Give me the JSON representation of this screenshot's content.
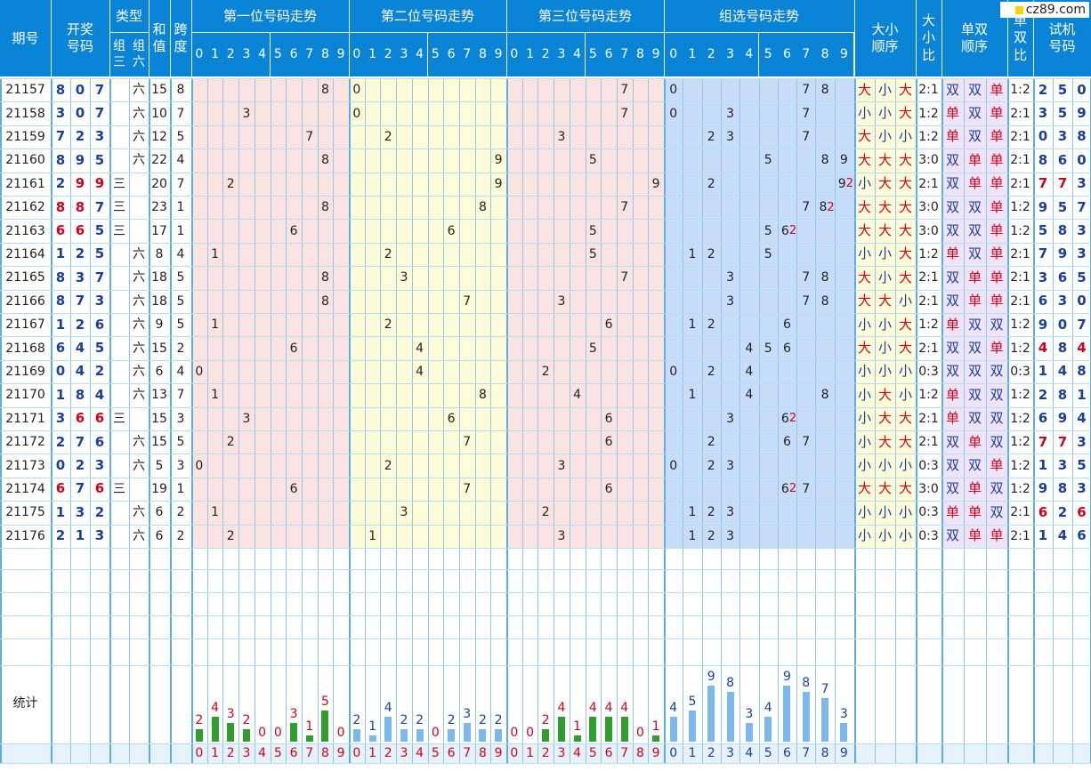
{
  "watermark": "cz89.com",
  "headers": {
    "period": "期号",
    "draw": "开奖\n号码",
    "type": "类型",
    "type_g3": "组\n三",
    "type_g6": "组\n六",
    "sum": "和\n值",
    "span": "跨\n度",
    "pos1": "第一位号码走势",
    "pos2": "第二位号码走势",
    "pos3": "第三位号码走势",
    "group": "组选号码走势",
    "big_small_order": "大小\n顺序",
    "big_small_ratio": "大\n小\n比",
    "odd_even_order": "单双\n顺序",
    "odd_even_ratio": "单\n双\n比",
    "trial": "试机\n号码",
    "digits": [
      "0",
      "1",
      "2",
      "3",
      "4",
      "5",
      "6",
      "7",
      "8",
      "9"
    ]
  },
  "rows": [
    {
      "p": "21157",
      "d": [
        "8",
        "0",
        "7"
      ],
      "red": [
        0,
        0,
        0
      ],
      "g3": "",
      "g6": "六",
      "sum": "15",
      "span": "8",
      "grp": [
        "0",
        "",
        "",
        "",
        "",
        "",
        "",
        "7",
        "8",
        ""
      ],
      "grpRed": [],
      "bs": [
        "大",
        "小",
        "大"
      ],
      "bsr": "2:1",
      "oe": [
        "双",
        "双",
        "单"
      ],
      "oer": "1:2",
      "t": [
        "2",
        "5",
        "0"
      ],
      "tRed": [
        0,
        0,
        0
      ]
    },
    {
      "p": "21158",
      "d": [
        "3",
        "0",
        "7"
      ],
      "red": [
        0,
        0,
        0
      ],
      "g3": "",
      "g6": "六",
      "sum": "10",
      "span": "7",
      "grp": [
        "0",
        "",
        "",
        "3",
        "",
        "",
        "",
        "7",
        "",
        ""
      ],
      "grpRed": [],
      "bs": [
        "小",
        "小",
        "大"
      ],
      "bsr": "1:2",
      "oe": [
        "单",
        "双",
        "单"
      ],
      "oer": "2:1",
      "t": [
        "3",
        "5",
        "9"
      ],
      "tRed": [
        0,
        0,
        0
      ]
    },
    {
      "p": "21159",
      "d": [
        "7",
        "2",
        "3"
      ],
      "red": [
        0,
        0,
        0
      ],
      "g3": "",
      "g6": "六",
      "sum": "12",
      "span": "5",
      "grp": [
        "",
        "",
        "2",
        "3",
        "",
        "",
        "",
        "7",
        "",
        ""
      ],
      "grpRed": [],
      "bs": [
        "大",
        "小",
        "小"
      ],
      "bsr": "1:2",
      "oe": [
        "单",
        "双",
        "单"
      ],
      "oer": "2:1",
      "t": [
        "0",
        "3",
        "8"
      ],
      "tRed": [
        0,
        0,
        0
      ]
    },
    {
      "p": "21160",
      "d": [
        "8",
        "9",
        "5"
      ],
      "red": [
        0,
        0,
        0
      ],
      "g3": "",
      "g6": "六",
      "sum": "22",
      "span": "4",
      "grp": [
        "",
        "",
        "",
        "",
        "",
        "5",
        "",
        "",
        "8",
        "9"
      ],
      "grpRed": [],
      "bs": [
        "大",
        "大",
        "大"
      ],
      "bsr": "3:0",
      "oe": [
        "双",
        "单",
        "单"
      ],
      "oer": "2:1",
      "t": [
        "8",
        "6",
        "0"
      ],
      "tRed": [
        0,
        0,
        0
      ]
    },
    {
      "p": "21161",
      "d": [
        "2",
        "9",
        "9"
      ],
      "red": [
        0,
        1,
        1
      ],
      "g3": "三",
      "g6": "",
      "sum": "20",
      "span": "7",
      "grp": [
        "",
        "",
        "2",
        "",
        "",
        "",
        "",
        "",
        "",
        "9"
      ],
      "grpRed": [
        9
      ],
      "bs": [
        "小",
        "大",
        "大"
      ],
      "bsr": "2:1",
      "oe": [
        "双",
        "单",
        "单"
      ],
      "oer": "2:1",
      "t": [
        "7",
        "7",
        "3"
      ],
      "tRed": [
        1,
        1,
        0
      ]
    },
    {
      "p": "21162",
      "d": [
        "8",
        "8",
        "7"
      ],
      "red": [
        1,
        1,
        0
      ],
      "g3": "三",
      "g6": "",
      "sum": "23",
      "span": "1",
      "grp": [
        "",
        "",
        "",
        "",
        "",
        "",
        "",
        "7",
        "8",
        ""
      ],
      "grpRed": [
        8
      ],
      "bs": [
        "大",
        "大",
        "大"
      ],
      "bsr": "3:0",
      "oe": [
        "双",
        "双",
        "单"
      ],
      "oer": "1:2",
      "t": [
        "9",
        "5",
        "7"
      ],
      "tRed": [
        0,
        0,
        0
      ]
    },
    {
      "p": "21163",
      "d": [
        "6",
        "6",
        "5"
      ],
      "red": [
        1,
        1,
        0
      ],
      "g3": "三",
      "g6": "",
      "sum": "17",
      "span": "1",
      "grp": [
        "",
        "",
        "",
        "",
        "",
        "5",
        "6",
        "",
        "",
        ""
      ],
      "grpRed": [
        6
      ],
      "bs": [
        "大",
        "大",
        "大"
      ],
      "bsr": "3:0",
      "oe": [
        "双",
        "双",
        "单"
      ],
      "oer": "1:2",
      "t": [
        "5",
        "8",
        "3"
      ],
      "tRed": [
        0,
        0,
        0
      ]
    },
    {
      "p": "21164",
      "d": [
        "1",
        "2",
        "5"
      ],
      "red": [
        0,
        0,
        0
      ],
      "g3": "",
      "g6": "六",
      "sum": "8",
      "span": "4",
      "grp": [
        "",
        "1",
        "2",
        "",
        "",
        "5",
        "",
        "",
        "",
        ""
      ],
      "grpRed": [],
      "bs": [
        "小",
        "小",
        "大"
      ],
      "bsr": "1:2",
      "oe": [
        "单",
        "双",
        "单"
      ],
      "oer": "2:1",
      "t": [
        "7",
        "9",
        "3"
      ],
      "tRed": [
        0,
        0,
        0
      ]
    },
    {
      "p": "21165",
      "d": [
        "8",
        "3",
        "7"
      ],
      "red": [
        0,
        0,
        0
      ],
      "g3": "",
      "g6": "六",
      "sum": "18",
      "span": "5",
      "grp": [
        "",
        "",
        "",
        "3",
        "",
        "",
        "",
        "7",
        "8",
        ""
      ],
      "grpRed": [],
      "bs": [
        "大",
        "小",
        "大"
      ],
      "bsr": "2:1",
      "oe": [
        "双",
        "单",
        "单"
      ],
      "oer": "2:1",
      "t": [
        "3",
        "6",
        "5"
      ],
      "tRed": [
        0,
        0,
        0
      ]
    },
    {
      "p": "21166",
      "d": [
        "8",
        "7",
        "3"
      ],
      "red": [
        0,
        0,
        0
      ],
      "g3": "",
      "g6": "六",
      "sum": "18",
      "span": "5",
      "grp": [
        "",
        "",
        "",
        "3",
        "",
        "",
        "",
        "7",
        "8",
        ""
      ],
      "grpRed": [],
      "bs": [
        "大",
        "大",
        "小"
      ],
      "bsr": "2:1",
      "oe": [
        "双",
        "单",
        "单"
      ],
      "oer": "2:1",
      "t": [
        "6",
        "3",
        "0"
      ],
      "tRed": [
        0,
        0,
        0
      ]
    },
    {
      "p": "21167",
      "d": [
        "1",
        "2",
        "6"
      ],
      "red": [
        0,
        0,
        0
      ],
      "g3": "",
      "g6": "六",
      "sum": "9",
      "span": "5",
      "grp": [
        "",
        "1",
        "2",
        "",
        "",
        "",
        "6",
        "",
        "",
        ""
      ],
      "grpRed": [],
      "bs": [
        "小",
        "小",
        "大"
      ],
      "bsr": "1:2",
      "oe": [
        "单",
        "双",
        "双"
      ],
      "oer": "1:2",
      "t": [
        "9",
        "0",
        "7"
      ],
      "tRed": [
        0,
        0,
        0
      ]
    },
    {
      "p": "21168",
      "d": [
        "6",
        "4",
        "5"
      ],
      "red": [
        0,
        0,
        0
      ],
      "g3": "",
      "g6": "六",
      "sum": "15",
      "span": "2",
      "grp": [
        "",
        "",
        "",
        "",
        "4",
        "5",
        "6",
        "",
        "",
        ""
      ],
      "grpRed": [],
      "bs": [
        "大",
        "小",
        "大"
      ],
      "bsr": "2:1",
      "oe": [
        "双",
        "双",
        "单"
      ],
      "oer": "1:2",
      "t": [
        "4",
        "8",
        "4"
      ],
      "tRed": [
        1,
        0,
        1
      ]
    },
    {
      "p": "21169",
      "d": [
        "0",
        "4",
        "2"
      ],
      "red": [
        0,
        0,
        0
      ],
      "g3": "",
      "g6": "六",
      "sum": "6",
      "span": "4",
      "grp": [
        "0",
        "",
        "2",
        "",
        "4",
        "",
        "",
        "",
        "",
        ""
      ],
      "grpRed": [],
      "bs": [
        "小",
        "小",
        "小"
      ],
      "bsr": "0:3",
      "oe": [
        "双",
        "双",
        "双"
      ],
      "oer": "0:3",
      "t": [
        "1",
        "4",
        "8"
      ],
      "tRed": [
        0,
        0,
        0
      ]
    },
    {
      "p": "21170",
      "d": [
        "1",
        "8",
        "4"
      ],
      "red": [
        0,
        0,
        0
      ],
      "g3": "",
      "g6": "六",
      "sum": "13",
      "span": "7",
      "grp": [
        "",
        "1",
        "",
        "",
        "4",
        "",
        "",
        "",
        "8",
        ""
      ],
      "grpRed": [],
      "bs": [
        "小",
        "大",
        "小"
      ],
      "bsr": "1:2",
      "oe": [
        "单",
        "双",
        "双"
      ],
      "oer": "1:2",
      "t": [
        "2",
        "8",
        "1"
      ],
      "tRed": [
        0,
        0,
        0
      ]
    },
    {
      "p": "21171",
      "d": [
        "3",
        "6",
        "6"
      ],
      "red": [
        0,
        1,
        1
      ],
      "g3": "三",
      "g6": "",
      "sum": "15",
      "span": "3",
      "grp": [
        "",
        "",
        "",
        "3",
        "",
        "",
        "6",
        "",
        "",
        ""
      ],
      "grpRed": [
        6
      ],
      "bs": [
        "小",
        "大",
        "大"
      ],
      "bsr": "2:1",
      "oe": [
        "单",
        "双",
        "双"
      ],
      "oer": "1:2",
      "t": [
        "6",
        "9",
        "4"
      ],
      "tRed": [
        0,
        0,
        0
      ]
    },
    {
      "p": "21172",
      "d": [
        "2",
        "7",
        "6"
      ],
      "red": [
        0,
        0,
        0
      ],
      "g3": "",
      "g6": "六",
      "sum": "15",
      "span": "5",
      "grp": [
        "",
        "",
        "2",
        "",
        "",
        "",
        "6",
        "7",
        "",
        ""
      ],
      "grpRed": [],
      "bs": [
        "小",
        "大",
        "大"
      ],
      "bsr": "2:1",
      "oe": [
        "双",
        "单",
        "双"
      ],
      "oer": "1:2",
      "t": [
        "7",
        "7",
        "3"
      ],
      "tRed": [
        1,
        1,
        0
      ]
    },
    {
      "p": "21173",
      "d": [
        "0",
        "2",
        "3"
      ],
      "red": [
        0,
        0,
        0
      ],
      "g3": "",
      "g6": "六",
      "sum": "5",
      "span": "3",
      "grp": [
        "0",
        "",
        "2",
        "3",
        "",
        "",
        "",
        "",
        "",
        ""
      ],
      "grpRed": [],
      "bs": [
        "小",
        "小",
        "小"
      ],
      "bsr": "0:3",
      "oe": [
        "双",
        "双",
        "单"
      ],
      "oer": "1:2",
      "t": [
        "1",
        "3",
        "5"
      ],
      "tRed": [
        0,
        0,
        0
      ]
    },
    {
      "p": "21174",
      "d": [
        "6",
        "7",
        "6"
      ],
      "red": [
        1,
        0,
        1
      ],
      "g3": "三",
      "g6": "",
      "sum": "19",
      "span": "1",
      "grp": [
        "",
        "",
        "",
        "",
        "",
        "",
        "6",
        "7",
        "",
        ""
      ],
      "grpRed": [
        6
      ],
      "bs": [
        "大",
        "大",
        "大"
      ],
      "bsr": "3:0",
      "oe": [
        "双",
        "单",
        "双"
      ],
      "oer": "1:2",
      "t": [
        "9",
        "8",
        "3"
      ],
      "tRed": [
        0,
        0,
        0
      ]
    },
    {
      "p": "21175",
      "d": [
        "1",
        "3",
        "2"
      ],
      "red": [
        0,
        0,
        0
      ],
      "g3": "",
      "g6": "六",
      "sum": "6",
      "span": "2",
      "grp": [
        "",
        "1",
        "2",
        "3",
        "",
        "",
        "",
        "",
        "",
        ""
      ],
      "grpRed": [],
      "bs": [
        "小",
        "小",
        "小"
      ],
      "bsr": "0:3",
      "oe": [
        "单",
        "单",
        "双"
      ],
      "oer": "2:1",
      "t": [
        "6",
        "2",
        "6"
      ],
      "tRed": [
        1,
        0,
        1
      ]
    },
    {
      "p": "21176",
      "d": [
        "2",
        "1",
        "3"
      ],
      "red": [
        0,
        0,
        0
      ],
      "g3": "",
      "g6": "六",
      "sum": "6",
      "span": "2",
      "grp": [
        "",
        "1",
        "2",
        "3",
        "",
        "",
        "",
        "",
        "",
        ""
      ],
      "grpRed": [],
      "bs": [
        "小",
        "小",
        "小"
      ],
      "bsr": "0:3",
      "oe": [
        "双",
        "单",
        "单"
      ],
      "oer": "2:1",
      "t": [
        "1",
        "4",
        "6"
      ],
      "tRed": [
        0,
        0,
        0
      ]
    }
  ],
  "stats": {
    "label": "统计",
    "pos1": [
      2,
      4,
      3,
      2,
      0,
      0,
      3,
      1,
      5,
      0
    ],
    "pos2": [
      2,
      1,
      4,
      2,
      2,
      0,
      2,
      3,
      2,
      2
    ],
    "pos3": [
      0,
      0,
      2,
      4,
      1,
      4,
      4,
      4,
      0,
      1
    ],
    "group": [
      4,
      5,
      9,
      8,
      3,
      4,
      9,
      8,
      7,
      3
    ]
  },
  "colors": {
    "header": "#0a84d6",
    "pos1_bg": "#fbe3e1",
    "pos2_bg": "#fdfbd8",
    "pos3_bg": "#fbe3e1",
    "group_bg": "#c6dcf8",
    "bs_bg": "#fdfbd8",
    "oe_bg": "#efe3f8",
    "green_bar": "#2f9e2f",
    "blue_bar": "#7ab8ee",
    "red_num": "#d0021b",
    "blue_num": "#1b3f9c"
  }
}
